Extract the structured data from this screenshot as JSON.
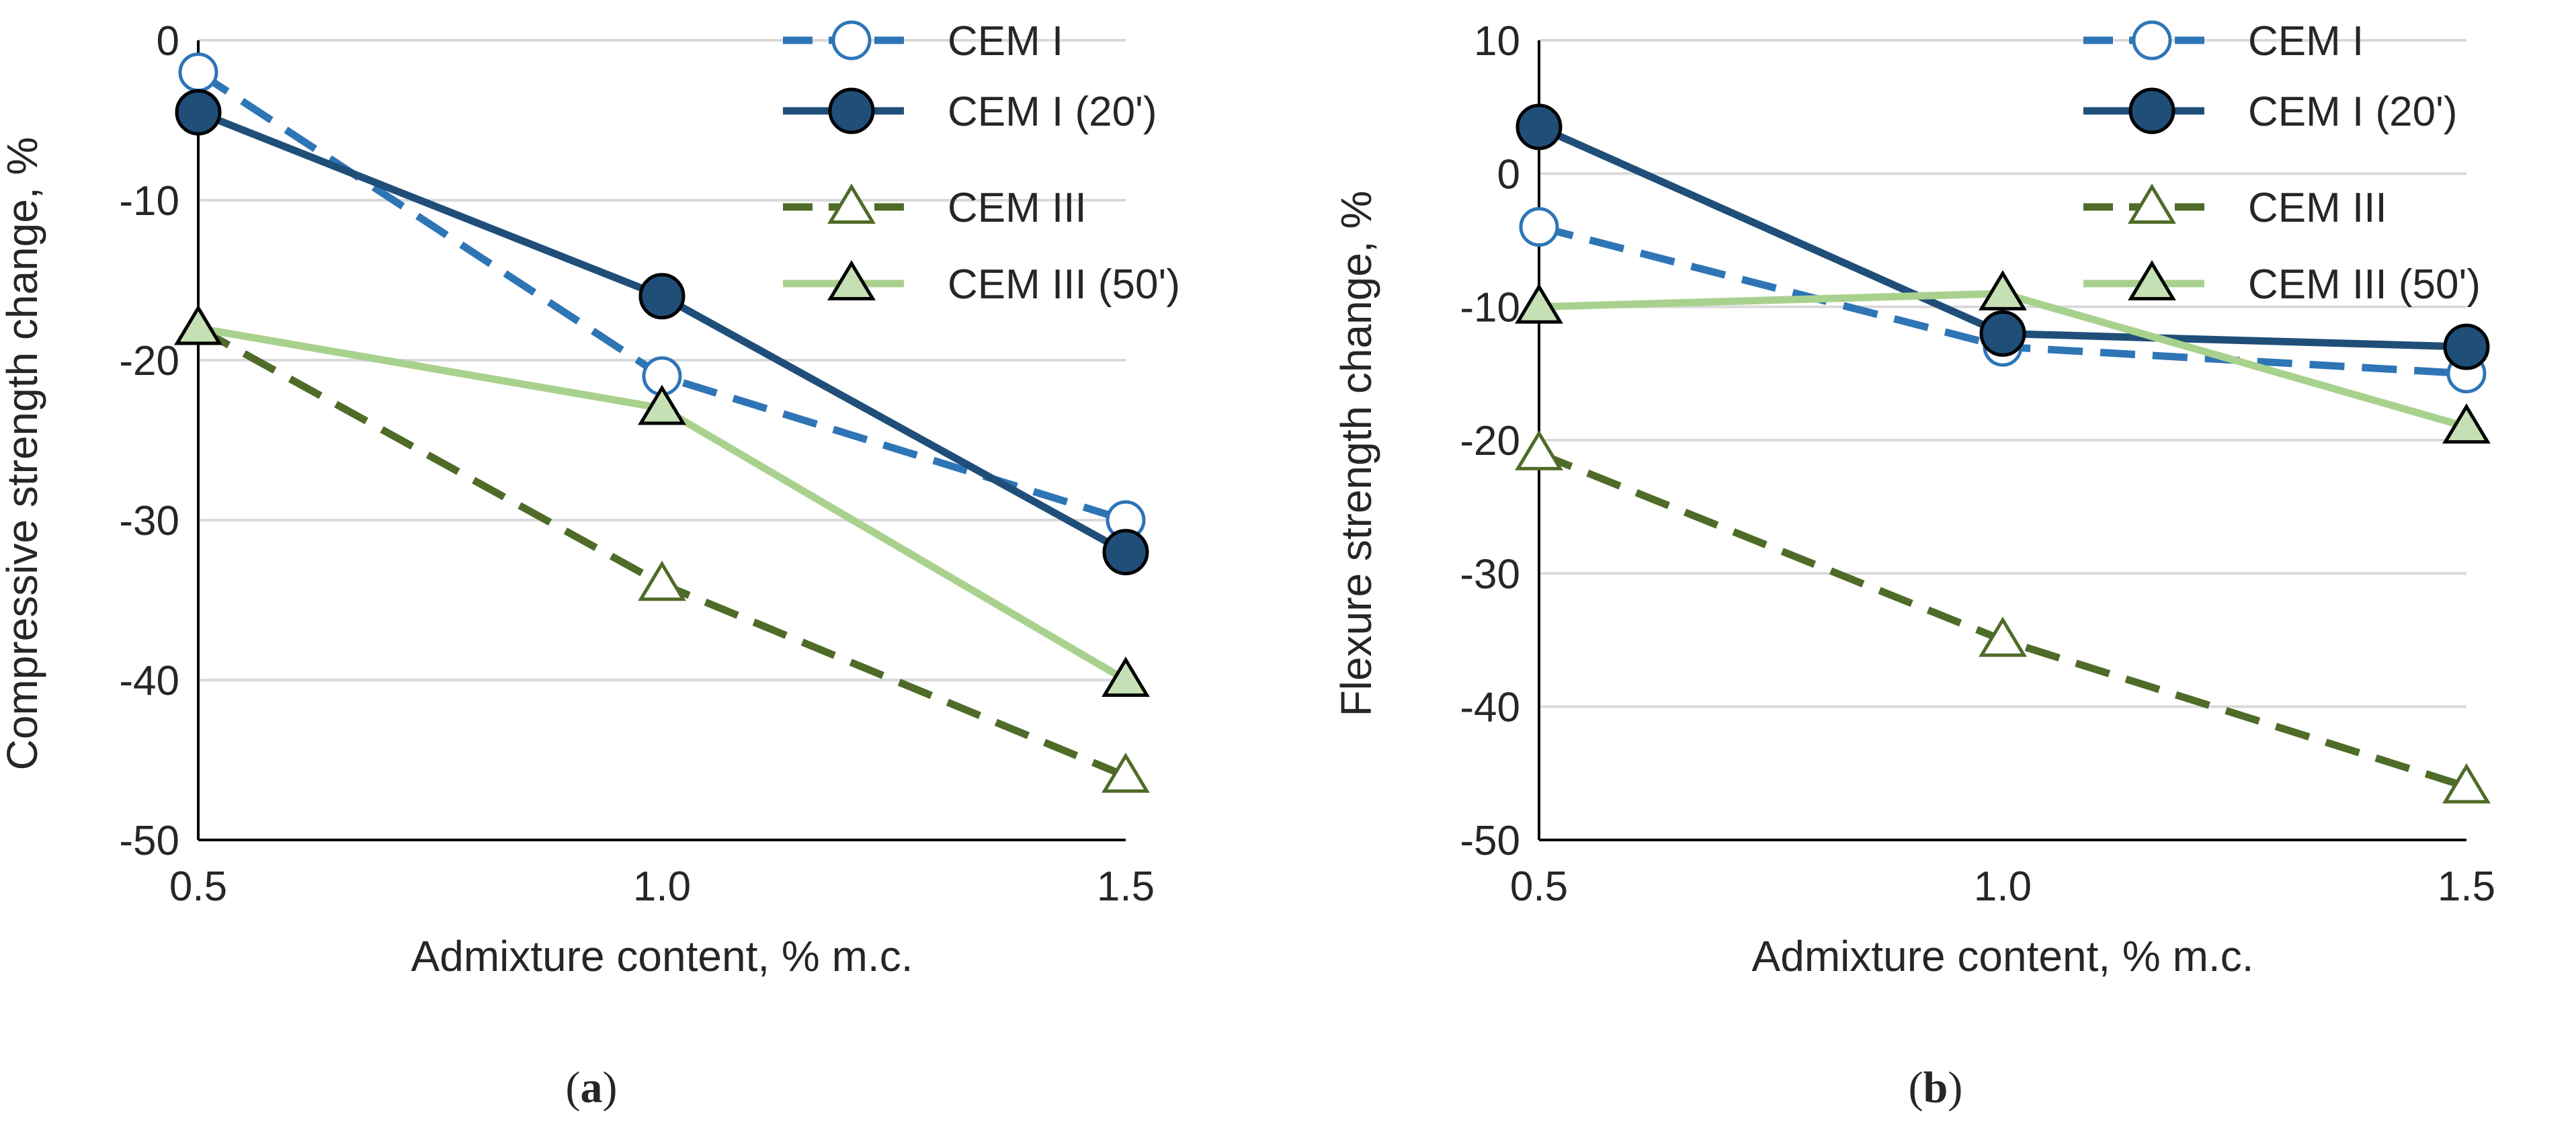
{
  "colors": {
    "cem1": "#2e75b6",
    "cem1_20": "#1f4e79",
    "cem3": "#4f6b28",
    "cem3_50": "#a9d18e",
    "cem3_50_fill": "#c5e0b4",
    "grid": "#d9d9d9",
    "axis": "#000000",
    "text": "#262626"
  },
  "legend": [
    {
      "label": "CEM I",
      "marker": "circle-open",
      "dash": true,
      "color": "#2e75b6"
    },
    {
      "label": "CEM I (20')",
      "marker": "circle-filled",
      "dash": false,
      "color": "#1f4e79"
    },
    {
      "label": "CEM III",
      "marker": "triangle-open",
      "dash": true,
      "color": "#4f6b28"
    },
    {
      "label": "CEM III (50')",
      "marker": "triangle-filled",
      "dash": false,
      "color": "#a9d18e"
    }
  ],
  "chart_data": [
    {
      "type": "line",
      "panel": "a",
      "caption": "(a)",
      "caption_letter": "a",
      "xlabel": "Admixture content, % m.c.",
      "ylabel": "Compressive strength change, %",
      "x": [
        0.5,
        1.0,
        1.5
      ],
      "x_tick_labels": [
        "0.5",
        "1.0",
        "1.5"
      ],
      "ylim": [
        -50,
        0
      ],
      "y_ticks": [
        0,
        -10,
        -20,
        -30,
        -40,
        -50
      ],
      "y_tick_labels": [
        "0",
        "-10",
        "-20",
        "-30",
        "-40",
        "-50"
      ],
      "grid": true,
      "legend_position": "top-right",
      "series": [
        {
          "name": "CEM I",
          "values": [
            -2,
            -21,
            -30
          ]
        },
        {
          "name": "CEM I (20')",
          "values": [
            -4.5,
            -16,
            -32
          ]
        },
        {
          "name": "CEM III",
          "values": [
            -18,
            -34,
            -46
          ]
        },
        {
          "name": "CEM III (50')",
          "values": [
            -18,
            -23,
            -40
          ]
        }
      ]
    },
    {
      "type": "line",
      "panel": "b",
      "caption": "(b)",
      "caption_letter": "b",
      "xlabel": "Admixture content, % m.c.",
      "ylabel": "Flexure strength change, %",
      "x": [
        0.5,
        1.0,
        1.5
      ],
      "x_tick_labels": [
        "0.5",
        "1.0",
        "1.5"
      ],
      "ylim": [
        -50,
        10
      ],
      "y_ticks": [
        10,
        0,
        -10,
        -20,
        -30,
        -40,
        -50
      ],
      "y_tick_labels": [
        "10",
        "0",
        "-10",
        "-20",
        "-30",
        "-40",
        "-50"
      ],
      "grid": true,
      "legend_position": "top-right",
      "series": [
        {
          "name": "CEM I",
          "values": [
            -4,
            -13,
            -15
          ]
        },
        {
          "name": "CEM I (20')",
          "values": [
            3.5,
            -12,
            -13
          ]
        },
        {
          "name": "CEM III",
          "values": [
            -21,
            -35,
            -46
          ]
        },
        {
          "name": "CEM III (50')",
          "values": [
            -10,
            -9,
            -19
          ]
        }
      ]
    }
  ]
}
